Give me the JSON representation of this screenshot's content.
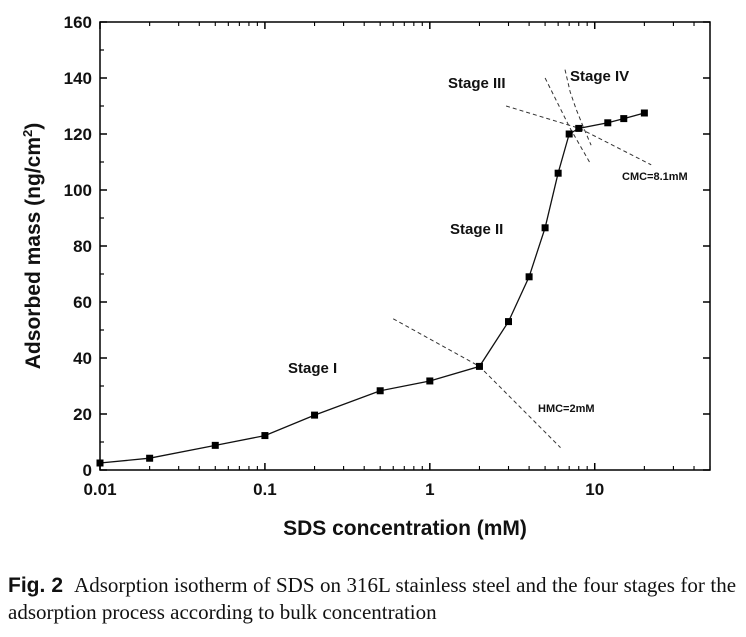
{
  "chart_data": {
    "type": "line",
    "xscale": "log",
    "xlabel": "SDS concentration (mM)",
    "ylabel_main": "Adsorbed mass (ng/cm",
    "ylabel_sup": "2",
    "ylabel_end": ")",
    "xlim": [
      0.01,
      50
    ],
    "ylim": [
      0,
      160
    ],
    "xticks": [
      0.01,
      0.1,
      1,
      10
    ],
    "xtick_labels": [
      "0.01",
      "0.1",
      "1",
      "10"
    ],
    "yticks": [
      0,
      20,
      40,
      60,
      80,
      100,
      120,
      140,
      160
    ],
    "ytick_labels": [
      "0",
      "20",
      "40",
      "60",
      "80",
      "100",
      "120",
      "140",
      "160"
    ],
    "series": [
      {
        "x": [
          0.01,
          0.02,
          0.05,
          0.1,
          0.2,
          0.5,
          1,
          2,
          3,
          4,
          5,
          6,
          7,
          8,
          12,
          15,
          20
        ],
        "y": [
          2.5,
          4.2,
          8.8,
          12.3,
          19.6,
          28.3,
          31.8,
          37.0,
          53.0,
          69.0,
          86.5,
          106.0,
          120.0,
          122.0,
          124.0,
          125.5,
          127.5
        ]
      }
    ],
    "annotations": {
      "stages": [
        "Stage I",
        "Stage II",
        "Stage III",
        "Stage IV"
      ],
      "hmc": "HMC=2mM",
      "cmc": "CMC=8.1mM"
    }
  },
  "caption": {
    "label": "Fig. 2",
    "text": "Adsorption isotherm of SDS on 316L stainless steel and the four stages for the adsorption process according to bulk concentration"
  }
}
